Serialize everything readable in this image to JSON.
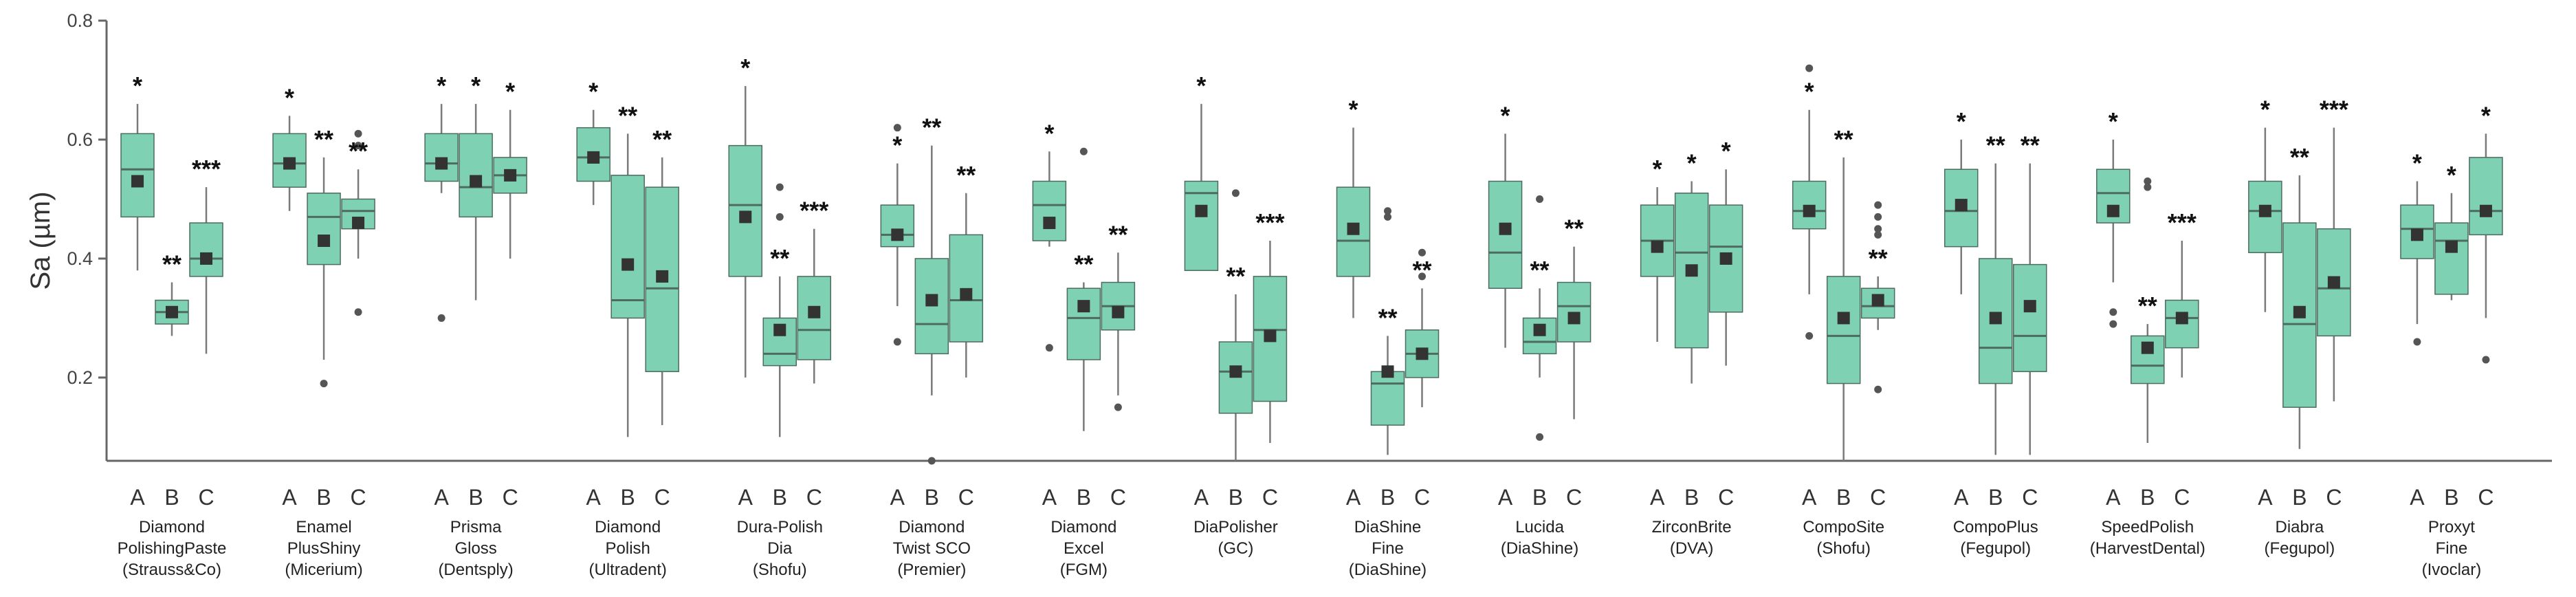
{
  "colors": {
    "box_fill": "#7fd1b4",
    "box_stroke": "#4d6b60",
    "mean": "#333333",
    "axis": "#666666",
    "whisker": "#7a7a7a"
  },
  "chart_data": {
    "type": "box",
    "title": "",
    "xlabel": "",
    "ylabel": "Sa (µm)",
    "ylim": [
      0.06,
      0.8
    ],
    "yticks": [
      0.2,
      0.4,
      0.6,
      0.8
    ],
    "ytick_labels": [
      "0.2",
      "0.4",
      "0.6",
      "0.8"
    ],
    "condition_labels": [
      "A",
      "B",
      "C"
    ],
    "groups": [
      {
        "name": [
          "Diamond",
          "PolishingPaste",
          "(Strauss&Co)"
        ],
        "boxes": [
          {
            "cond": "A",
            "whisker_low": 0.38,
            "q1": 0.47,
            "median": 0.55,
            "q3": 0.61,
            "whisker_high": 0.66,
            "mean": 0.53,
            "outliers": [],
            "sig": "*"
          },
          {
            "cond": "B",
            "whisker_low": 0.27,
            "q1": 0.29,
            "median": 0.31,
            "q3": 0.33,
            "whisker_high": 0.36,
            "mean": 0.31,
            "outliers": [],
            "sig": "**"
          },
          {
            "cond": "C",
            "whisker_low": 0.24,
            "q1": 0.37,
            "median": 0.4,
            "q3": 0.46,
            "whisker_high": 0.52,
            "mean": 0.4,
            "outliers": [],
            "sig": "***"
          }
        ]
      },
      {
        "name": [
          "Enamel",
          "PlusShiny",
          "(Micerium)"
        ],
        "boxes": [
          {
            "cond": "A",
            "whisker_low": 0.48,
            "q1": 0.52,
            "median": 0.56,
            "q3": 0.61,
            "whisker_high": 0.64,
            "mean": 0.56,
            "outliers": [],
            "sig": "*"
          },
          {
            "cond": "B",
            "whisker_low": 0.23,
            "q1": 0.39,
            "median": 0.47,
            "q3": 0.51,
            "whisker_high": 0.57,
            "mean": 0.43,
            "outliers": [
              0.19
            ],
            "sig": "**"
          },
          {
            "cond": "C",
            "whisker_low": 0.4,
            "q1": 0.45,
            "median": 0.48,
            "q3": 0.5,
            "whisker_high": 0.55,
            "mean": 0.46,
            "outliers": [
              0.31,
              0.59,
              0.61
            ],
            "sig": "**"
          }
        ]
      },
      {
        "name": [
          "Prisma",
          "Gloss",
          "(Dentsply)"
        ],
        "boxes": [
          {
            "cond": "A",
            "whisker_low": 0.51,
            "q1": 0.53,
            "median": 0.56,
            "q3": 0.61,
            "whisker_high": 0.66,
            "mean": 0.56,
            "outliers": [
              0.3
            ],
            "sig": "*"
          },
          {
            "cond": "B",
            "whisker_low": 0.33,
            "q1": 0.47,
            "median": 0.52,
            "q3": 0.61,
            "whisker_high": 0.66,
            "mean": 0.53,
            "outliers": [],
            "sig": "*"
          },
          {
            "cond": "C",
            "whisker_low": 0.4,
            "q1": 0.51,
            "median": 0.54,
            "q3": 0.57,
            "whisker_high": 0.65,
            "mean": 0.54,
            "outliers": [],
            "sig": "*"
          }
        ]
      },
      {
        "name": [
          "Diamond",
          "Polish",
          "(Ultradent)"
        ],
        "boxes": [
          {
            "cond": "A",
            "whisker_low": 0.49,
            "q1": 0.53,
            "median": 0.57,
            "q3": 0.62,
            "whisker_high": 0.65,
            "mean": 0.57,
            "outliers": [],
            "sig": "*"
          },
          {
            "cond": "B",
            "whisker_low": 0.1,
            "q1": 0.3,
            "median": 0.33,
            "q3": 0.54,
            "whisker_high": 0.61,
            "mean": 0.39,
            "outliers": [],
            "sig": "**"
          },
          {
            "cond": "C",
            "whisker_low": 0.12,
            "q1": 0.21,
            "median": 0.35,
            "q3": 0.52,
            "whisker_high": 0.57,
            "mean": 0.37,
            "outliers": [],
            "sig": "**"
          }
        ]
      },
      {
        "name": [
          "Dura-Polish",
          "Dia",
          "(Shofu)"
        ],
        "boxes": [
          {
            "cond": "A",
            "whisker_low": 0.2,
            "q1": 0.37,
            "median": 0.49,
            "q3": 0.59,
            "whisker_high": 0.69,
            "mean": 0.47,
            "outliers": [],
            "sig": "*"
          },
          {
            "cond": "B",
            "whisker_low": 0.1,
            "q1": 0.22,
            "median": 0.24,
            "q3": 0.3,
            "whisker_high": 0.37,
            "mean": 0.28,
            "outliers": [
              0.47,
              0.52
            ],
            "sig": "**"
          },
          {
            "cond": "C",
            "whisker_low": 0.19,
            "q1": 0.23,
            "median": 0.28,
            "q3": 0.37,
            "whisker_high": 0.45,
            "mean": 0.31,
            "outliers": [],
            "sig": "***"
          }
        ]
      },
      {
        "name": [
          "Diamond",
          "Twist SCO",
          "(Premier)"
        ],
        "boxes": [
          {
            "cond": "A",
            "whisker_low": 0.32,
            "q1": 0.42,
            "median": 0.44,
            "q3": 0.49,
            "whisker_high": 0.56,
            "mean": 0.44,
            "outliers": [
              0.26,
              0.62
            ],
            "sig": "*"
          },
          {
            "cond": "B",
            "whisker_low": 0.17,
            "q1": 0.24,
            "median": 0.29,
            "q3": 0.4,
            "whisker_high": 0.59,
            "mean": 0.33,
            "outliers": [
              0.06
            ],
            "sig": "**"
          },
          {
            "cond": "C",
            "whisker_low": 0.2,
            "q1": 0.26,
            "median": 0.33,
            "q3": 0.44,
            "whisker_high": 0.51,
            "mean": 0.34,
            "outliers": [],
            "sig": "**"
          }
        ]
      },
      {
        "name": [
          "Diamond",
          "Excel",
          "(FGM)"
        ],
        "boxes": [
          {
            "cond": "A",
            "whisker_low": 0.42,
            "q1": 0.43,
            "median": 0.49,
            "q3": 0.53,
            "whisker_high": 0.58,
            "mean": 0.46,
            "outliers": [
              0.25
            ],
            "sig": "*"
          },
          {
            "cond": "B",
            "whisker_low": 0.11,
            "q1": 0.23,
            "median": 0.3,
            "q3": 0.35,
            "whisker_high": 0.36,
            "mean": 0.32,
            "outliers": [
              0.58
            ],
            "sig": "**"
          },
          {
            "cond": "C",
            "whisker_low": 0.17,
            "q1": 0.28,
            "median": 0.32,
            "q3": 0.36,
            "whisker_high": 0.41,
            "mean": 0.31,
            "outliers": [
              0.15
            ],
            "sig": "**"
          }
        ]
      },
      {
        "name": [
          "DiaPolisher",
          "(GC)"
        ],
        "boxes": [
          {
            "cond": "A",
            "whisker_low": 0.38,
            "q1": 0.38,
            "median": 0.51,
            "q3": 0.53,
            "whisker_high": 0.66,
            "mean": 0.48,
            "outliers": [],
            "sig": "*"
          },
          {
            "cond": "B",
            "whisker_low": 0.06,
            "q1": 0.14,
            "median": 0.21,
            "q3": 0.26,
            "whisker_high": 0.34,
            "mean": 0.21,
            "outliers": [
              0.51
            ],
            "sig": "**"
          },
          {
            "cond": "C",
            "whisker_low": 0.09,
            "q1": 0.16,
            "median": 0.28,
            "q3": 0.37,
            "whisker_high": 0.43,
            "mean": 0.27,
            "outliers": [],
            "sig": "***"
          }
        ]
      },
      {
        "name": [
          "DiaShine",
          "Fine",
          "(DiaShine)"
        ],
        "boxes": [
          {
            "cond": "A",
            "whisker_low": 0.3,
            "q1": 0.37,
            "median": 0.43,
            "q3": 0.52,
            "whisker_high": 0.62,
            "mean": 0.45,
            "outliers": [],
            "sig": "*"
          },
          {
            "cond": "B",
            "whisker_low": 0.07,
            "q1": 0.12,
            "median": 0.19,
            "q3": 0.21,
            "whisker_high": 0.27,
            "mean": 0.21,
            "outliers": [
              0.47,
              0.48
            ],
            "sig": "**"
          },
          {
            "cond": "C",
            "whisker_low": 0.15,
            "q1": 0.2,
            "median": 0.24,
            "q3": 0.28,
            "whisker_high": 0.35,
            "mean": 0.24,
            "outliers": [
              0.37,
              0.41
            ],
            "sig": "**"
          }
        ]
      },
      {
        "name": [
          "Lucida",
          "(DiaShine)"
        ],
        "boxes": [
          {
            "cond": "A",
            "whisker_low": 0.25,
            "q1": 0.35,
            "median": 0.41,
            "q3": 0.53,
            "whisker_high": 0.61,
            "mean": 0.45,
            "outliers": [],
            "sig": "*"
          },
          {
            "cond": "B",
            "whisker_low": 0.2,
            "q1": 0.24,
            "median": 0.26,
            "q3": 0.3,
            "whisker_high": 0.35,
            "mean": 0.28,
            "outliers": [
              0.1,
              0.5
            ],
            "sig": "**"
          },
          {
            "cond": "C",
            "whisker_low": 0.13,
            "q1": 0.26,
            "median": 0.32,
            "q3": 0.36,
            "whisker_high": 0.42,
            "mean": 0.3,
            "outliers": [],
            "sig": "**"
          }
        ]
      },
      {
        "name": [
          "ZirconBrite",
          "(DVA)"
        ],
        "boxes": [
          {
            "cond": "A",
            "whisker_low": 0.26,
            "q1": 0.37,
            "median": 0.43,
            "q3": 0.49,
            "whisker_high": 0.52,
            "mean": 0.42,
            "outliers": [],
            "sig": "*"
          },
          {
            "cond": "B",
            "whisker_low": 0.19,
            "q1": 0.25,
            "median": 0.41,
            "q3": 0.51,
            "whisker_high": 0.53,
            "mean": 0.38,
            "outliers": [],
            "sig": "*"
          },
          {
            "cond": "C",
            "whisker_low": 0.22,
            "q1": 0.31,
            "median": 0.42,
            "q3": 0.49,
            "whisker_high": 0.55,
            "mean": 0.4,
            "outliers": [],
            "sig": "*"
          }
        ]
      },
      {
        "name": [
          "CompoSite",
          "(Shofu)"
        ],
        "boxes": [
          {
            "cond": "A",
            "whisker_low": 0.34,
            "q1": 0.45,
            "median": 0.48,
            "q3": 0.53,
            "whisker_high": 0.65,
            "mean": 0.48,
            "outliers": [
              0.27,
              0.72
            ],
            "sig": "*"
          },
          {
            "cond": "B",
            "whisker_low": 0.06,
            "q1": 0.19,
            "median": 0.27,
            "q3": 0.37,
            "whisker_high": 0.57,
            "mean": 0.3,
            "outliers": [],
            "sig": "**"
          },
          {
            "cond": "C",
            "whisker_low": 0.28,
            "q1": 0.3,
            "median": 0.32,
            "q3": 0.35,
            "whisker_high": 0.37,
            "mean": 0.33,
            "outliers": [
              0.18,
              0.44,
              0.45,
              0.47,
              0.49
            ],
            "sig": "**"
          }
        ]
      },
      {
        "name": [
          "CompoPlus",
          "(Fegupol)"
        ],
        "boxes": [
          {
            "cond": "A",
            "whisker_low": 0.34,
            "q1": 0.42,
            "median": 0.48,
            "q3": 0.55,
            "whisker_high": 0.6,
            "mean": 0.49,
            "outliers": [],
            "sig": "*"
          },
          {
            "cond": "B",
            "whisker_low": 0.07,
            "q1": 0.19,
            "median": 0.25,
            "q3": 0.4,
            "whisker_high": 0.56,
            "mean": 0.3,
            "outliers": [],
            "sig": "**"
          },
          {
            "cond": "C",
            "whisker_low": 0.07,
            "q1": 0.21,
            "median": 0.27,
            "q3": 0.39,
            "whisker_high": 0.56,
            "mean": 0.32,
            "outliers": [],
            "sig": "**"
          }
        ]
      },
      {
        "name": [
          "SpeedPolish",
          "(HarvestDental)"
        ],
        "boxes": [
          {
            "cond": "A",
            "whisker_low": 0.36,
            "q1": 0.46,
            "median": 0.51,
            "q3": 0.55,
            "whisker_high": 0.6,
            "mean": 0.48,
            "outliers": [
              0.29,
              0.31
            ],
            "sig": "*"
          },
          {
            "cond": "B",
            "whisker_low": 0.09,
            "q1": 0.19,
            "median": 0.22,
            "q3": 0.27,
            "whisker_high": 0.29,
            "mean": 0.25,
            "outliers": [
              0.52,
              0.53
            ],
            "sig": "**"
          },
          {
            "cond": "C",
            "whisker_low": 0.2,
            "q1": 0.25,
            "median": 0.3,
            "q3": 0.33,
            "whisker_high": 0.43,
            "mean": 0.3,
            "outliers": [],
            "sig": "***"
          }
        ]
      },
      {
        "name": [
          "Diabra",
          "(Fegupol)"
        ],
        "boxes": [
          {
            "cond": "A",
            "whisker_low": 0.31,
            "q1": 0.41,
            "median": 0.48,
            "q3": 0.53,
            "whisker_high": 0.62,
            "mean": 0.48,
            "outliers": [],
            "sig": "*"
          },
          {
            "cond": "B",
            "whisker_low": 0.08,
            "q1": 0.15,
            "median": 0.29,
            "q3": 0.46,
            "whisker_high": 0.54,
            "mean": 0.31,
            "outliers": [],
            "sig": "**"
          },
          {
            "cond": "C",
            "whisker_low": 0.16,
            "q1": 0.27,
            "median": 0.35,
            "q3": 0.45,
            "whisker_high": 0.62,
            "mean": 0.36,
            "outliers": [],
            "sig": "***"
          }
        ]
      },
      {
        "name": [
          "Proxyt",
          "Fine",
          "(Ivoclar)"
        ],
        "boxes": [
          {
            "cond": "A",
            "whisker_low": 0.29,
            "q1": 0.4,
            "median": 0.45,
            "q3": 0.49,
            "whisker_high": 0.53,
            "mean": 0.44,
            "outliers": [
              0.26
            ],
            "sig": "*"
          },
          {
            "cond": "B",
            "whisker_low": 0.33,
            "q1": 0.34,
            "median": 0.43,
            "q3": 0.46,
            "whisker_high": 0.51,
            "mean": 0.42,
            "outliers": [],
            "sig": "*"
          },
          {
            "cond": "C",
            "whisker_low": 0.3,
            "q1": 0.44,
            "median": 0.48,
            "q3": 0.57,
            "whisker_high": 0.61,
            "mean": 0.48,
            "outliers": [
              0.23
            ],
            "sig": "*"
          }
        ]
      }
    ]
  }
}
